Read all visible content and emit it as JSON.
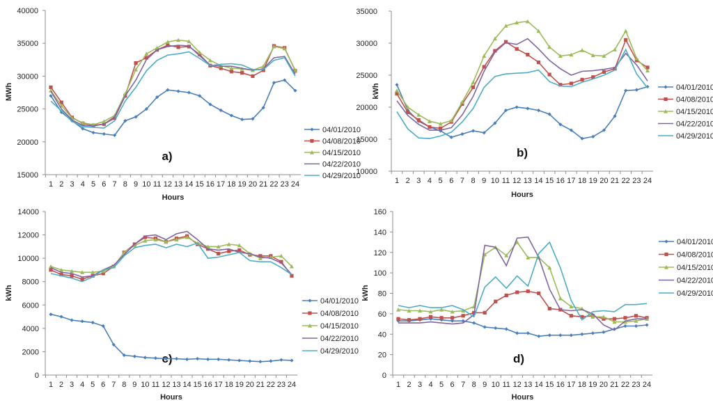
{
  "colors": {
    "04/01/2010": "#4a7ebb",
    "04/08/2010": "#c0504d",
    "04/15/2010": "#9bbb59",
    "04/22/2010": "#8064a2",
    "04/29/2010": "#4bacc6"
  },
  "chart_data": [
    {
      "type": "line",
      "panel_label": "a)",
      "xlabel": "Hours",
      "ylabel": "MWh",
      "ylim": [
        15000,
        40000
      ],
      "yticks": [
        15000,
        20000,
        25000,
        30000,
        35000,
        40000
      ],
      "x": [
        1,
        2,
        3,
        4,
        5,
        6,
        7,
        8,
        9,
        10,
        11,
        12,
        13,
        14,
        15,
        16,
        17,
        18,
        19,
        20,
        21,
        22,
        23,
        24
      ],
      "series": [
        {
          "name": "04/01/2010",
          "values": [
            27000,
            24500,
            23200,
            22000,
            21400,
            21200,
            21000,
            23200,
            23800,
            25000,
            26800,
            27900,
            27700,
            27500,
            27000,
            25700,
            24800,
            24000,
            23400,
            23500,
            25200,
            29000,
            29400,
            27800
          ]
        },
        {
          "name": "04/08/2010",
          "values": [
            28300,
            26000,
            23700,
            22800,
            22500,
            22700,
            23600,
            27000,
            32000,
            32800,
            34000,
            34700,
            34400,
            34500,
            33300,
            31600,
            31200,
            30700,
            30500,
            30000,
            30900,
            34600,
            34300,
            30800
          ]
        },
        {
          "name": "04/15/2010",
          "values": [
            27800,
            25500,
            23600,
            22900,
            22600,
            23100,
            24000,
            27300,
            31000,
            33400,
            34300,
            35200,
            35500,
            35300,
            33600,
            32400,
            31600,
            31200,
            31100,
            30900,
            31500,
            34500,
            34200,
            30900
          ]
        },
        {
          "name": "04/22/2010",
          "values": [
            27700,
            25000,
            23300,
            22500,
            22400,
            22700,
            23800,
            27000,
            29400,
            32500,
            34000,
            34500,
            34700,
            34600,
            33100,
            31700,
            31500,
            31500,
            31200,
            30900,
            31100,
            32800,
            33000,
            30300
          ]
        },
        {
          "name": "04/29/2010",
          "values": [
            26200,
            24700,
            23100,
            22300,
            22200,
            22100,
            23200,
            26200,
            28300,
            30800,
            32400,
            33200,
            33400,
            33700,
            32700,
            31600,
            31800,
            31900,
            31700,
            31000,
            31000,
            32400,
            32800,
            30000
          ]
        }
      ]
    },
    {
      "type": "line",
      "panel_label": "b)",
      "xlabel": "Hours",
      "ylabel": "kWh",
      "ylim": [
        10000,
        35000
      ],
      "yticks": [
        10000,
        15000,
        20000,
        25000,
        30000,
        35000
      ],
      "x": [
        1,
        2,
        3,
        4,
        5,
        6,
        7,
        8,
        9,
        10,
        11,
        12,
        13,
        14,
        15,
        16,
        17,
        18,
        19,
        20,
        21,
        22,
        23,
        24
      ],
      "series": [
        {
          "name": "04/01/2010",
          "values": [
            23500,
            19500,
            17800,
            16900,
            16300,
            15300,
            15800,
            16300,
            16000,
            17500,
            19500,
            20000,
            19800,
            19500,
            18900,
            17300,
            16400,
            15100,
            15400,
            16400,
            18600,
            22600,
            22700,
            23200
          ]
        },
        {
          "name": "04/08/2010",
          "values": [
            22100,
            19200,
            18000,
            16900,
            16700,
            17700,
            20500,
            23100,
            26300,
            28800,
            30200,
            29100,
            28200,
            27000,
            25100,
            23500,
            23700,
            24300,
            24700,
            25500,
            26000,
            30500,
            27300,
            26200
          ]
        },
        {
          "name": "04/15/2010",
          "values": [
            22600,
            20000,
            18800,
            17800,
            17400,
            17900,
            20800,
            23900,
            28000,
            30700,
            32700,
            33200,
            33400,
            31900,
            29400,
            28000,
            28200,
            28900,
            28100,
            28000,
            29000,
            31900,
            27600,
            25700
          ]
        },
        {
          "name": "04/22/2010",
          "values": [
            21000,
            18700,
            17300,
            16400,
            16400,
            16800,
            18800,
            21700,
            25600,
            28600,
            30100,
            29800,
            30700,
            29100,
            27300,
            26000,
            25000,
            25600,
            25700,
            25900,
            26200,
            28400,
            26600,
            24100
          ]
        },
        {
          "name": "04/29/2010",
          "values": [
            19300,
            16600,
            15200,
            15100,
            15500,
            16100,
            17700,
            19800,
            23100,
            24800,
            25200,
            25300,
            25400,
            25800,
            24000,
            23300,
            23200,
            23900,
            24400,
            25000,
            25800,
            29000,
            25200,
            23000
          ]
        }
      ]
    },
    {
      "type": "line",
      "panel_label": "c)",
      "xlabel": "Hours",
      "ylabel": "kWh",
      "ylim": [
        0,
        14000
      ],
      "yticks": [
        0,
        2000,
        4000,
        6000,
        8000,
        10000,
        12000,
        14000
      ],
      "x": [
        1,
        2,
        3,
        4,
        5,
        6,
        7,
        8,
        9,
        10,
        11,
        12,
        13,
        14,
        15,
        16,
        17,
        18,
        19,
        20,
        21,
        22,
        23,
        24
      ],
      "series": [
        {
          "name": "04/01/2010",
          "values": [
            5200,
            5000,
            4700,
            4600,
            4500,
            4200,
            2600,
            1700,
            1600,
            1500,
            1450,
            1400,
            1400,
            1350,
            1400,
            1350,
            1350,
            1300,
            1250,
            1200,
            1150,
            1200,
            1300,
            1250
          ]
        },
        {
          "name": "04/08/2010",
          "values": [
            9000,
            8600,
            8500,
            8200,
            8500,
            8700,
            9300,
            10500,
            11200,
            11800,
            11700,
            11400,
            11700,
            11900,
            11200,
            10800,
            10400,
            10600,
            10700,
            10300,
            10200,
            10200,
            9700,
            8500
          ]
        },
        {
          "name": "04/15/2010",
          "values": [
            9300,
            9000,
            8900,
            8800,
            8800,
            8900,
            9300,
            10500,
            11100,
            11500,
            11600,
            11400,
            11600,
            11800,
            11300,
            11000,
            11000,
            11200,
            11100,
            10400,
            10000,
            10100,
            10200,
            9300
          ]
        },
        {
          "name": "04/22/2010",
          "values": [
            9200,
            8800,
            8700,
            8400,
            8500,
            9000,
            9400,
            10300,
            11200,
            11900,
            12000,
            11600,
            12100,
            12300,
            11600,
            10800,
            10700,
            10800,
            10500,
            10400,
            10100,
            10000,
            9600,
            8600
          ]
        },
        {
          "name": "04/29/2010",
          "values": [
            8700,
            8500,
            8300,
            8000,
            8400,
            9000,
            9200,
            10200,
            10900,
            11100,
            11200,
            10900,
            11200,
            11000,
            11300,
            10000,
            10100,
            10300,
            10500,
            9800,
            9700,
            9700,
            9200,
            8600
          ]
        }
      ]
    },
    {
      "type": "line",
      "panel_label": "d)",
      "xlabel": "Hours",
      "ylabel": "kWh",
      "ylim": [
        0,
        160
      ],
      "yticks": [
        0,
        20,
        40,
        60,
        80,
        100,
        120,
        140,
        160
      ],
      "x": [
        1,
        2,
        3,
        4,
        5,
        6,
        7,
        8,
        9,
        10,
        11,
        12,
        13,
        14,
        15,
        16,
        17,
        18,
        19,
        20,
        21,
        22,
        23,
        24
      ],
      "series": [
        {
          "name": "04/01/2010",
          "values": [
            53,
            53,
            54,
            55,
            54,
            53,
            53,
            51,
            47,
            46,
            45,
            41,
            41,
            38,
            39,
            39,
            39,
            40,
            41,
            42,
            45,
            48,
            48,
            49
          ]
        },
        {
          "name": "04/08/2010",
          "values": [
            55,
            54,
            55,
            57,
            56,
            56,
            58,
            61,
            61,
            72,
            78,
            81,
            82,
            80,
            65,
            64,
            58,
            57,
            58,
            55,
            55,
            56,
            58,
            56
          ]
        },
        {
          "name": "04/15/2010",
          "values": [
            64,
            63,
            63,
            62,
            64,
            62,
            63,
            67,
            118,
            125,
            117,
            130,
            115,
            115,
            105,
            75,
            67,
            65,
            57,
            57,
            52,
            52,
            53,
            55
          ]
        },
        {
          "name": "04/22/2010",
          "values": [
            51,
            51,
            51,
            52,
            51,
            50,
            51,
            59,
            127,
            125,
            107,
            134,
            135,
            115,
            84,
            64,
            63,
            64,
            60,
            49,
            44,
            53,
            55,
            55
          ]
        },
        {
          "name": "04/29/2010",
          "values": [
            68,
            66,
            68,
            66,
            66,
            68,
            64,
            57,
            86,
            96,
            85,
            97,
            87,
            119,
            130,
            105,
            73,
            54,
            62,
            63,
            62,
            69,
            69,
            70
          ]
        }
      ]
    }
  ]
}
